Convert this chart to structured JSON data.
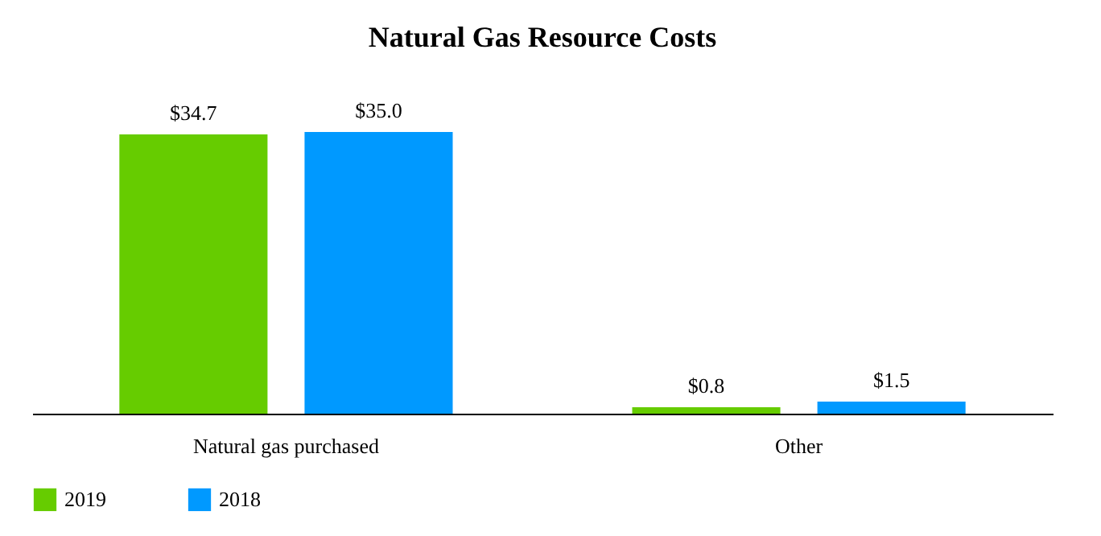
{
  "chart_data": {
    "type": "bar",
    "title": "Natural Gas Resource Costs",
    "categories": [
      "Natural gas purchased",
      "Other"
    ],
    "series": [
      {
        "name": "2019",
        "color": "#66cc00",
        "values": [
          34.7,
          0.8
        ],
        "value_labels": [
          "$34.7",
          "$0.8"
        ]
      },
      {
        "name": "2018",
        "color": "#0099ff",
        "values": [
          35.0,
          1.5
        ],
        "value_labels": [
          "$35.0",
          "$1.5"
        ]
      }
    ],
    "legend": "bottom",
    "grid": false
  }
}
